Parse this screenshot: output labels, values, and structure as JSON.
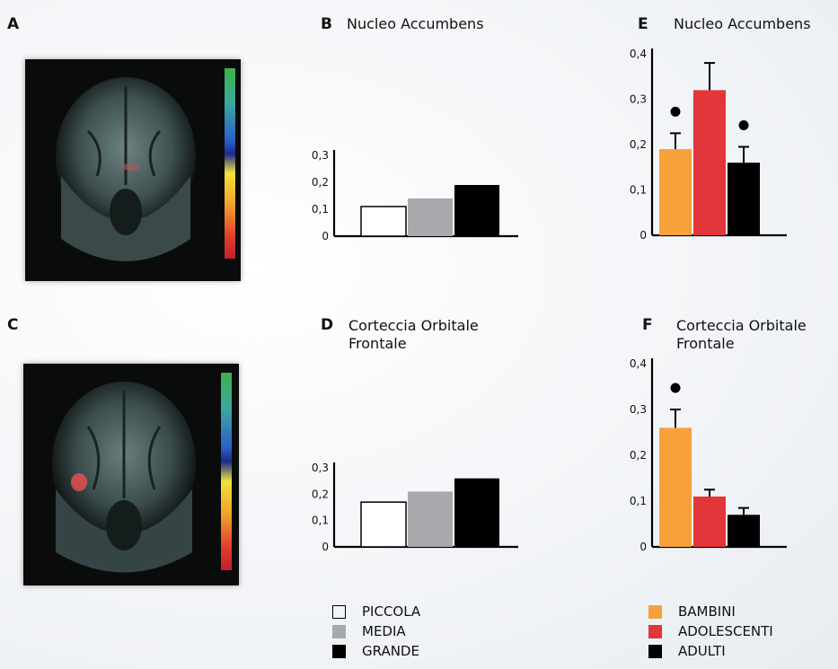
{
  "panels": {
    "A": {
      "label": "A"
    },
    "B": {
      "label": "B",
      "title": "Nucleo Accumbens"
    },
    "C": {
      "label": "C"
    },
    "D": {
      "label": "D",
      "title_line1": "Corteccia Orbitale",
      "title_line2": "Frontale"
    },
    "E": {
      "label": "E",
      "title": "Nucleo Accumbens"
    },
    "F": {
      "label": "F",
      "title_line1": "Corteccia Orbitale",
      "title_line2": "Frontale"
    }
  },
  "legend_size": {
    "items": [
      {
        "label": "PICCOLA",
        "color": "#ffffff"
      },
      {
        "label": "MEDIA",
        "color": "#a7a9ac"
      },
      {
        "label": "GRANDE",
        "color": "#000000"
      }
    ]
  },
  "legend_age": {
    "items": [
      {
        "label": "BAMBINI",
        "color": "#f7a13a"
      },
      {
        "label": "ADOLESCENTI",
        "color": "#e2363a"
      },
      {
        "label": "ADULTI",
        "color": "#000000"
      }
    ]
  },
  "chart_data": [
    {
      "panel": "B",
      "type": "bar",
      "title": "Nucleo Accumbens",
      "categories": [
        "PICCOLA",
        "MEDIA",
        "GRANDE"
      ],
      "values": [
        0.11,
        0.14,
        0.19
      ],
      "colors": [
        "#ffffff",
        "#a7a9ac",
        "#000000"
      ],
      "ylim": [
        0,
        0.3
      ],
      "yticks": [
        "0",
        "0,1",
        "0,2",
        "0,3"
      ]
    },
    {
      "panel": "D",
      "type": "bar",
      "title": "Corteccia Orbitale Frontale",
      "categories": [
        "PICCOLA",
        "MEDIA",
        "GRANDE"
      ],
      "values": [
        0.17,
        0.21,
        0.26
      ],
      "colors": [
        "#ffffff",
        "#a7a9ac",
        "#000000"
      ],
      "ylim": [
        0,
        0.3
      ],
      "yticks": [
        "0",
        "0,1",
        "0,2",
        "0,3"
      ]
    },
    {
      "panel": "E",
      "type": "bar",
      "title": "Nucleo Accumbens",
      "categories": [
        "BAMBINI",
        "ADOLESCENTI",
        "ADULTI"
      ],
      "values": [
        0.19,
        0.32,
        0.16
      ],
      "errors": [
        0.035,
        0.06,
        0.035
      ],
      "markers": [
        true,
        false,
        true
      ],
      "colors": [
        "#f7a13a",
        "#e2363a",
        "#000000"
      ],
      "ylim": [
        0,
        0.4
      ],
      "yticks": [
        "0",
        "0,1",
        "0,2",
        "0,3",
        "0,4"
      ]
    },
    {
      "panel": "F",
      "type": "bar",
      "title": "Corteccia Orbitale Frontale",
      "categories": [
        "BAMBINI",
        "ADOLESCENTI",
        "ADULTI"
      ],
      "values": [
        0.26,
        0.11,
        0.07
      ],
      "errors": [
        0.04,
        0.015,
        0.015
      ],
      "markers": [
        true,
        false,
        false
      ],
      "colors": [
        "#f7a13a",
        "#e2363a",
        "#000000"
      ],
      "ylim": [
        0,
        0.4
      ],
      "yticks": [
        "0",
        "0,1",
        "0,2",
        "0,3",
        "0,4"
      ]
    }
  ]
}
